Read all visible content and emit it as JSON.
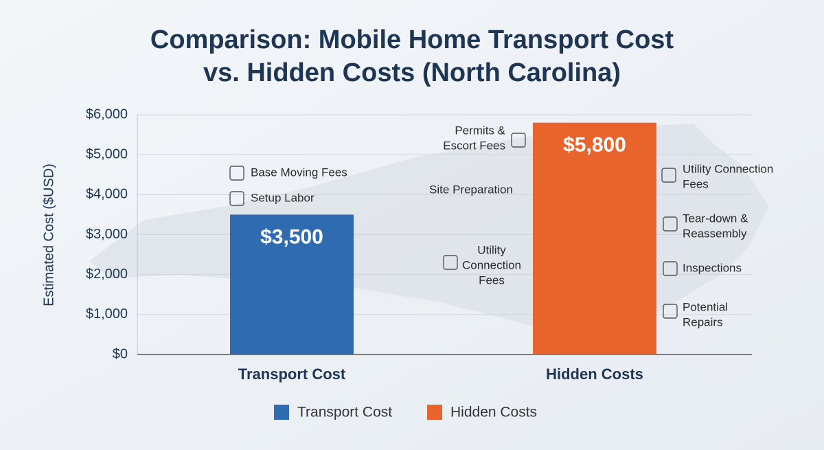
{
  "chart_data": {
    "type": "bar",
    "title": [
      "Comparison: Mobile Home Transport Cost",
      "vs. Hidden Costs (North Carolina)"
    ],
    "y_label": "Estimated Cost ($USD)",
    "categories": [
      "Transport Cost",
      "Hidden Costs"
    ],
    "series": [
      {
        "name": "Transport Cost",
        "color": "#2e6bb0",
        "values": [
          3500,
          null
        ],
        "value_labels": [
          "$3,500",
          null
        ]
      },
      {
        "name": "Hidden Costs",
        "color": "#e9642d",
        "values": [
          null,
          5800
        ],
        "value_labels": [
          null,
          "$5,800"
        ]
      }
    ],
    "ylim": [
      0,
      6000
    ],
    "yticks": [
      {
        "value": 0,
        "label": "$0"
      },
      {
        "value": 1000,
        "label": "$1,000"
      },
      {
        "value": 2000,
        "label": "$2,000"
      },
      {
        "value": 3000,
        "label": "$3,000"
      },
      {
        "value": 4000,
        "label": "$4,000"
      },
      {
        "value": 5000,
        "label": "$5,000"
      },
      {
        "value": 6000,
        "label": "$6,000"
      }
    ],
    "grid": true,
    "legend": "bottom",
    "annotations": [
      [
        "Base Moving Fees"
      ],
      [
        "Setup Labor"
      ],
      [
        "Permits &",
        "Escort Fees"
      ],
      [
        "Site Preparation"
      ],
      [
        "Utility",
        "Connection",
        "Fees"
      ],
      [
        "Utility Connection",
        "Fees"
      ],
      [
        "Tear-down &",
        "Reassembly"
      ],
      [
        "Inspections"
      ],
      [
        "Potential",
        "Repairs"
      ]
    ]
  }
}
